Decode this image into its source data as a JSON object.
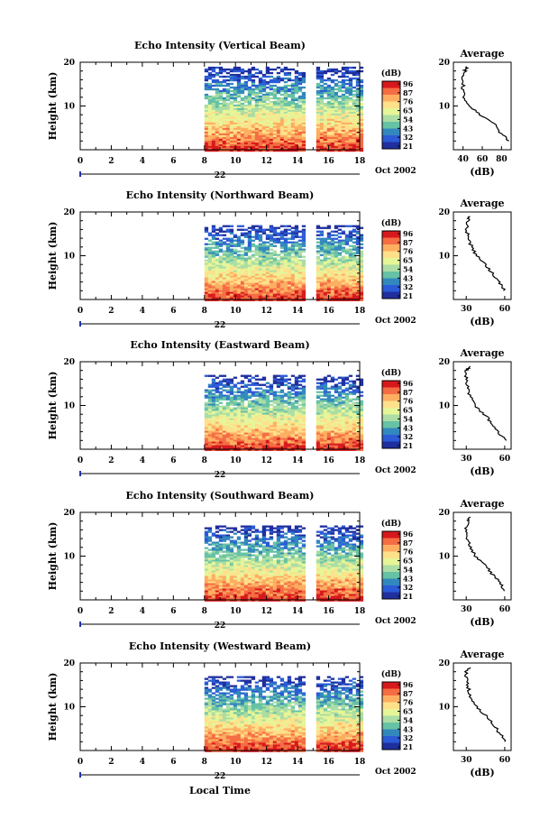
{
  "chart_data": [
    {
      "type": "heatmap",
      "title": "Echo Intensity (Vertical Beam)",
      "ylabel": "Height (km)",
      "xticks": [
        "0",
        "2",
        "4",
        "6",
        "8",
        "10",
        "12",
        "14",
        "16",
        "18"
      ],
      "xlim": [
        0,
        18
      ],
      "ylim": [
        0,
        20
      ],
      "yticks": [
        "20",
        "10"
      ],
      "date_label": "22",
      "month_label": "Oct 2002",
      "data_start_hour": 8,
      "data_end_hour": 18,
      "data_gap_hours": [
        14.6,
        15.1
      ],
      "top_km": 19,
      "colorbar": {
        "unit": "(dB)",
        "ticks": [
          "96",
          "87",
          "76",
          "65",
          "54",
          "43",
          "32",
          "21"
        ]
      },
      "average": {
        "title": "Average",
        "xlabel": "(dB)",
        "xticks": [
          "40",
          "60",
          "80"
        ],
        "xlim": [
          30,
          90
        ],
        "heights_km": [
          2,
          4,
          6,
          8,
          10,
          12,
          14,
          16,
          18,
          19
        ],
        "values_db": [
          88,
          78,
          72,
          58,
          46,
          41,
          40,
          40,
          42,
          44
        ]
      }
    },
    {
      "type": "heatmap",
      "title": "Echo Intensity (Northward Beam)",
      "ylabel": "Height (km)",
      "xticks": [
        "0",
        "2",
        "4",
        "6",
        "8",
        "10",
        "12",
        "14",
        "16",
        "18"
      ],
      "xlim": [
        0,
        18
      ],
      "ylim": [
        0,
        20
      ],
      "yticks": [
        "20",
        "10"
      ],
      "date_label": "22",
      "month_label": "Oct 2002",
      "data_start_hour": 8,
      "data_end_hour": 18,
      "data_gap_hours": [
        14.6,
        15.1
      ],
      "top_km": 17,
      "colorbar": {
        "unit": "(dB)",
        "ticks": [
          "96",
          "87",
          "76",
          "65",
          "54",
          "43",
          "32",
          "21"
        ]
      },
      "average": {
        "title": "Average",
        "xlabel": "(dB)",
        "xticks": [
          "30",
          "60"
        ],
        "xlim": [
          20,
          65
        ],
        "heights_km": [
          2,
          4,
          6,
          8,
          10,
          12,
          14,
          16,
          18,
          19
        ],
        "values_db": [
          60,
          55,
          50,
          45,
          38,
          34,
          32,
          30,
          31,
          33
        ]
      }
    },
    {
      "type": "heatmap",
      "title": "Echo Intensity (Eastward Beam)",
      "ylabel": "Height (km)",
      "xticks": [
        "0",
        "2",
        "4",
        "6",
        "8",
        "10",
        "12",
        "14",
        "16",
        "18"
      ],
      "xlim": [
        0,
        18
      ],
      "ylim": [
        0,
        20
      ],
      "yticks": [
        "20",
        "10"
      ],
      "date_label": "22",
      "month_label": "Oct 2002",
      "data_start_hour": 8,
      "data_end_hour": 18,
      "data_gap_hours": [
        14.6,
        15.1
      ],
      "top_km": 17,
      "colorbar": {
        "unit": "(dB)",
        "ticks": [
          "96",
          "87",
          "76",
          "65",
          "54",
          "43",
          "32",
          "21"
        ]
      },
      "average": {
        "title": "Average",
        "xlabel": "(dB)",
        "xticks": [
          "30",
          "60"
        ],
        "xlim": [
          20,
          65
        ],
        "heights_km": [
          2,
          4,
          6,
          8,
          10,
          12,
          14,
          16,
          18,
          19
        ],
        "values_db": [
          60,
          55,
          50,
          44,
          37,
          33,
          31,
          30,
          30,
          33
        ]
      }
    },
    {
      "type": "heatmap",
      "title": "Echo Intensity (Southward Beam)",
      "ylabel": "Height (km)",
      "xticks": [
        "0",
        "2",
        "4",
        "6",
        "8",
        "10",
        "12",
        "14",
        "16",
        "18"
      ],
      "xlim": [
        0,
        18
      ],
      "ylim": [
        0,
        20
      ],
      "yticks": [
        "20",
        "10"
      ],
      "date_label": "22",
      "month_label": "Oct 2002",
      "data_start_hour": 8,
      "data_end_hour": 18,
      "data_gap_hours": [
        14.6,
        15.1
      ],
      "top_km": 17,
      "colorbar": {
        "unit": "(dB)",
        "ticks": [
          "96",
          "87",
          "76",
          "65",
          "54",
          "43",
          "32",
          "21"
        ]
      },
      "average": {
        "title": "Average",
        "xlabel": "(dB)",
        "xticks": [
          "30",
          "60"
        ],
        "xlim": [
          20,
          65
        ],
        "heights_km": [
          2,
          4,
          6,
          8,
          10,
          12,
          14,
          16,
          18,
          19
        ],
        "values_db": [
          60,
          56,
          50,
          44,
          37,
          33,
          31,
          30,
          31,
          33
        ]
      }
    },
    {
      "type": "heatmap",
      "title": "Echo Intensity (Westward Beam)",
      "ylabel": "Height (km)",
      "xticks": [
        "0",
        "2",
        "4",
        "6",
        "8",
        "10",
        "12",
        "14",
        "16",
        "18"
      ],
      "xlim": [
        0,
        18
      ],
      "ylim": [
        0,
        20
      ],
      "yticks": [
        "20",
        "10"
      ],
      "date_label": "22",
      "month_label": "Oct 2002",
      "data_start_hour": 8,
      "data_end_hour": 18,
      "data_gap_hours": [
        14.6,
        15.1
      ],
      "top_km": 17,
      "colorbar": {
        "unit": "(dB)",
        "ticks": [
          "96",
          "87",
          "76",
          "65",
          "54",
          "43",
          "32",
          "21"
        ]
      },
      "average": {
        "title": "Average",
        "xlabel": "(dB)",
        "xticks": [
          "30",
          "60"
        ],
        "xlim": [
          20,
          65
        ],
        "heights_km": [
          2,
          4,
          6,
          8,
          10,
          12,
          14,
          16,
          18,
          19
        ],
        "values_db": [
          60,
          56,
          51,
          45,
          38,
          34,
          32,
          30,
          30,
          33
        ]
      }
    }
  ],
  "xlabel": "Local Time",
  "colormap": [
    "#d7191c",
    "#f46d43",
    "#fdae61",
    "#fee08b",
    "#e6f598",
    "#abdda4",
    "#66c2a5",
    "#3288bd",
    "#2b5bd6",
    "#1f2f9e"
  ]
}
